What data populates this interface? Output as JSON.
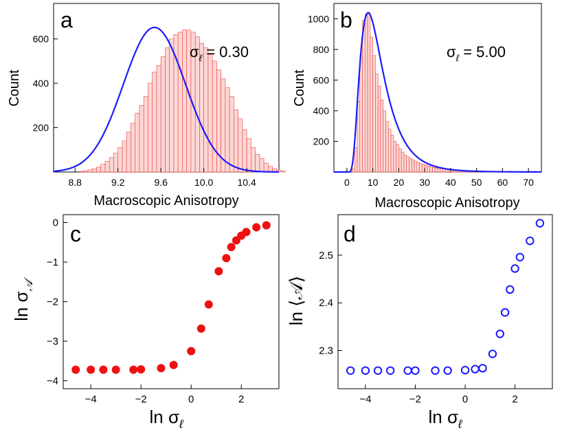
{
  "chart_data": [
    {
      "panel": "a",
      "type": "bar",
      "xlabel": "Macroscopic Anisotropy",
      "ylabel": "Count",
      "xlim": [
        8.6,
        10.7
      ],
      "ylim": [
        0,
        760
      ],
      "xticks": [
        8.8,
        9.2,
        9.6,
        10.0,
        10.4
      ],
      "yticks": [
        200,
        400,
        600
      ],
      "annotation": {
        "symbol": "σ",
        "subscript": "ℓ",
        "text": " = 0.30"
      },
      "histogram": {
        "bin_start": 8.84,
        "bin_width": 0.04,
        "color": "#e8413c",
        "counts": [
          3,
          6,
          10,
          15,
          22,
          35,
          48,
          65,
          85,
          110,
          140,
          180,
          220,
          265,
          300,
          340,
          400,
          450,
          480,
          520,
          560,
          600,
          620,
          630,
          640,
          640,
          630,
          610,
          580,
          560,
          530,
          500,
          460,
          420,
          380,
          340,
          280,
          240,
          190,
          150,
          110,
          80,
          60,
          40,
          25,
          15,
          8,
          4
        ]
      },
      "fit": {
        "type": "gaussian",
        "amplitude": 652,
        "mean": 9.54,
        "sigma": 0.29,
        "color": "#1a1aff"
      }
    },
    {
      "panel": "b",
      "type": "bar",
      "xlabel": "Macroscopic Anisotropy",
      "ylabel": "Count",
      "xlim": [
        -5,
        75
      ],
      "ylim": [
        0,
        1100
      ],
      "xticks": [
        0,
        10,
        20,
        30,
        40,
        50,
        60,
        70
      ],
      "yticks": [
        200,
        400,
        600,
        800,
        1000
      ],
      "annotation": {
        "symbol": "σ",
        "subscript": "ℓ",
        "text": " = 5.00"
      },
      "histogram": {
        "bin_start": 2,
        "bin_width": 1,
        "color": "#e8413c",
        "counts": [
          20,
          160,
          460,
          760,
          990,
          1030,
          1040,
          880,
          760,
          640,
          560,
          470,
          400,
          330,
          280,
          240,
          200,
          180,
          150,
          130,
          110,
          100,
          90,
          80,
          70,
          60,
          55,
          50,
          45,
          40,
          35,
          30,
          27,
          24,
          22,
          20,
          18,
          16,
          14,
          12,
          11,
          10,
          9,
          8,
          7,
          6,
          6,
          5,
          5,
          4
        ]
      },
      "fit": {
        "type": "lognormal",
        "peak": 1040,
        "mode": 8.2,
        "shape": 0.55,
        "color": "#1a1aff"
      }
    },
    {
      "panel": "c",
      "type": "scatter",
      "xlabel": "ln σℓ",
      "ylabel": "ln σ𝒜",
      "xlim": [
        -5.1,
        3.5
      ],
      "ylim": [
        -4.2,
        0.2
      ],
      "xticks": [
        -4,
        -2,
        0,
        2
      ],
      "yticks": [
        0,
        -1,
        -2,
        -3,
        -4
      ],
      "series": [
        {
          "marker": "filled-circle",
          "color": "#ee1111",
          "x": [
            -4.6,
            -4.0,
            -3.5,
            -3.0,
            -2.3,
            -2.0,
            -1.2,
            -0.7,
            0.0,
            0.4,
            0.7,
            1.1,
            1.4,
            1.6,
            1.8,
            2.0,
            2.2,
            2.6,
            3.0
          ],
          "y": [
            -3.72,
            -3.72,
            -3.72,
            -3.72,
            -3.72,
            -3.71,
            -3.68,
            -3.6,
            -3.25,
            -2.68,
            -2.07,
            -1.23,
            -0.9,
            -0.62,
            -0.45,
            -0.33,
            -0.24,
            -0.12,
            -0.07
          ]
        }
      ]
    },
    {
      "panel": "d",
      "type": "scatter",
      "xlabel": "ln σℓ",
      "ylabel": "ln ⟨𝒜⟩",
      "xlim": [
        -5.1,
        3.5
      ],
      "ylim": [
        2.22,
        2.585
      ],
      "xticks": [
        -4,
        -2,
        0,
        2
      ],
      "yticks": [
        2.3,
        2.4,
        2.5
      ],
      "series": [
        {
          "marker": "open-circle",
          "color": "#1a1aff",
          "x": [
            -4.6,
            -4.0,
            -3.5,
            -3.0,
            -2.3,
            -2.0,
            -1.2,
            -0.7,
            0.0,
            0.4,
            0.7,
            1.1,
            1.4,
            1.6,
            1.8,
            2.0,
            2.2,
            2.6,
            3.0
          ],
          "y": [
            2.258,
            2.258,
            2.258,
            2.258,
            2.258,
            2.258,
            2.258,
            2.258,
            2.259,
            2.261,
            2.263,
            2.293,
            2.335,
            2.38,
            2.428,
            2.472,
            2.496,
            2.53,
            2.567
          ]
        }
      ]
    }
  ],
  "panel_labels": [
    "a",
    "b",
    "c",
    "d"
  ]
}
